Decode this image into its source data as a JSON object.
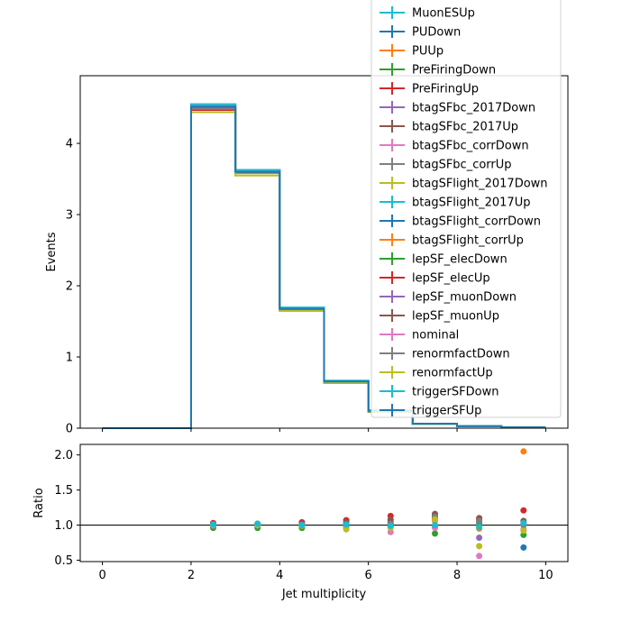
{
  "colors": [
    "#1f77b4",
    "#ff7f0e",
    "#2ca02c",
    "#d62728",
    "#9467bd",
    "#8c564b",
    "#e377c2",
    "#7f7f7f",
    "#bcbd22",
    "#17becf"
  ],
  "chart_data": [
    {
      "type": "step",
      "name": "main",
      "xlabel": "",
      "ylabel": "Events",
      "xlim": [
        -0.5,
        10.5
      ],
      "ylim": [
        0,
        4.95
      ],
      "xticks": [
        0,
        2,
        4,
        6,
        8,
        10
      ],
      "yticks": [
        0,
        1,
        2,
        3,
        4
      ],
      "bin_edges": [
        0,
        1,
        2,
        3,
        4,
        5,
        6,
        7,
        8,
        9,
        10
      ],
      "nominal": [
        0,
        0,
        4.5,
        3.6,
        1.67,
        0.65,
        0.24,
        0.06,
        0.03,
        0.01
      ],
      "legend_position": "upper right",
      "series": [
        {
          "name": "MuonESUp",
          "color": "#17becf"
        },
        {
          "name": "PUDown",
          "color": "#1f77b4"
        },
        {
          "name": "PUUp",
          "color": "#ff7f0e"
        },
        {
          "name": "PreFiringDown",
          "color": "#2ca02c"
        },
        {
          "name": "PreFiringUp",
          "color": "#d62728"
        },
        {
          "name": "btagSFbc_2017Down",
          "color": "#9467bd"
        },
        {
          "name": "btagSFbc_2017Up",
          "color": "#8c564b"
        },
        {
          "name": "btagSFbc_corrDown",
          "color": "#e377c2"
        },
        {
          "name": "btagSFbc_corrUp",
          "color": "#7f7f7f"
        },
        {
          "name": "btagSFlight_2017Down",
          "color": "#bcbd22"
        },
        {
          "name": "btagSFlight_2017Up",
          "color": "#17becf"
        },
        {
          "name": "btagSFlight_corrDown",
          "color": "#1f77b4"
        },
        {
          "name": "btagSFlight_corrUp",
          "color": "#ff7f0e"
        },
        {
          "name": "lepSF_elecDown",
          "color": "#2ca02c"
        },
        {
          "name": "lepSF_elecUp",
          "color": "#d62728"
        },
        {
          "name": "lepSF_muonDown",
          "color": "#9467bd"
        },
        {
          "name": "lepSF_muonUp",
          "color": "#8c564b"
        },
        {
          "name": "nominal",
          "color": "#e377c2"
        },
        {
          "name": "renormfactDown",
          "color": "#7f7f7f"
        },
        {
          "name": "renormfactUp",
          "color": "#bcbd22"
        },
        {
          "name": "triggerSFDown",
          "color": "#17becf"
        },
        {
          "name": "triggerSFUp",
          "color": "#1f77b4"
        }
      ]
    },
    {
      "type": "scatter",
      "name": "ratio",
      "xlabel": "Jet multiplicity",
      "ylabel": "Ratio",
      "xlim": [
        -0.5,
        10.5
      ],
      "ylim": [
        0.48,
        2.15
      ],
      "xticks": [
        0,
        2,
        4,
        6,
        8,
        10
      ],
      "xtick_labels": [
        "0",
        "2",
        "4",
        "6",
        "8",
        "10"
      ],
      "yticks": [
        0.5,
        1.0,
        1.5,
        2.0
      ],
      "ytick_labels": [
        "0.5",
        "1.0",
        "1.5",
        "2.0"
      ],
      "reference_line": 1.0,
      "x_centers": [
        2.5,
        3.5,
        4.5,
        5.5,
        6.5,
        7.5,
        8.5,
        9.5
      ],
      "series": [
        {
          "color": "#1f77b4",
          "values": [
            1.02,
            1.01,
            1.0,
            1.0,
            1.02,
            0.98,
            1.04,
            0.68
          ]
        },
        {
          "color": "#ff7f0e",
          "values": [
            0.99,
            0.99,
            1.0,
            1.02,
            1.04,
            1.06,
            0.95,
            2.05
          ]
        },
        {
          "color": "#2ca02c",
          "values": [
            0.96,
            0.96,
            0.96,
            0.95,
            0.98,
            0.88,
            1.0,
            0.86
          ]
        },
        {
          "color": "#d62728",
          "values": [
            1.03,
            1.02,
            1.04,
            1.07,
            1.13,
            1.1,
            1.08,
            1.21
          ]
        },
        {
          "color": "#9467bd",
          "values": [
            1.01,
            1.0,
            1.01,
            1.02,
            1.05,
            1.14,
            0.82,
            1.02
          ]
        },
        {
          "color": "#8c564b",
          "values": [
            1.0,
            1.01,
            1.02,
            1.04,
            1.08,
            1.16,
            1.1,
            1.06
          ]
        },
        {
          "color": "#e377c2",
          "values": [
            1.0,
            1.0,
            1.0,
            0.97,
            0.9,
            0.96,
            0.56,
            0.94
          ]
        },
        {
          "color": "#7f7f7f",
          "values": [
            0.98,
            0.99,
            0.99,
            0.99,
            1.02,
            1.12,
            1.06,
            1.0
          ]
        },
        {
          "color": "#bcbd22",
          "values": [
            1.0,
            1.0,
            0.99,
            0.94,
            0.96,
            1.08,
            0.7,
            0.92
          ]
        },
        {
          "color": "#17becf",
          "values": [
            1.01,
            1.02,
            1.0,
            1.01,
            0.99,
            1.0,
            0.97,
            1.03
          ]
        }
      ]
    }
  ]
}
